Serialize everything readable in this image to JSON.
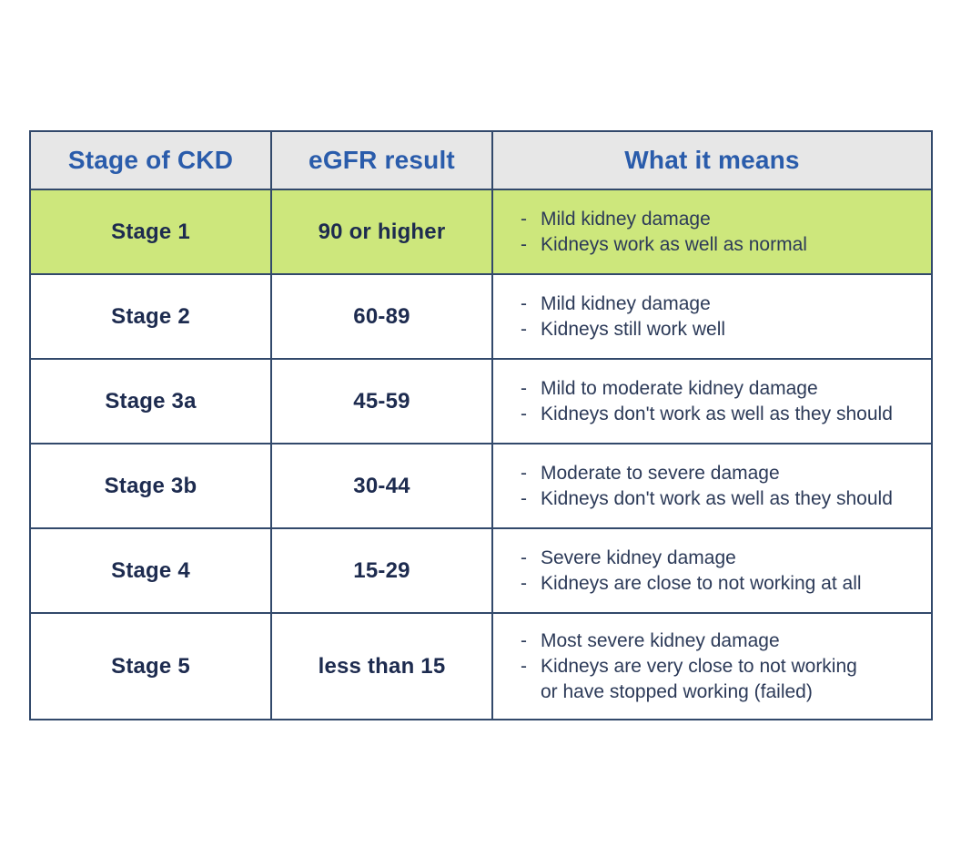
{
  "page": {
    "background": "#ffffff"
  },
  "table": {
    "title_semantic": "Stages of chronic kidney disease by eGFR result",
    "bullet_char": "-",
    "columns": [
      {
        "label": "Stage of CKD"
      },
      {
        "label": "eGFR result"
      },
      {
        "label": "What it means"
      }
    ],
    "rows": [
      {
        "stage": "Stage 1",
        "egfr": "90 or higher",
        "highlighted": true,
        "meaning": [
          "Mild kidney damage",
          "Kidneys work as well as normal"
        ]
      },
      {
        "stage": "Stage 2",
        "egfr": "60-89",
        "highlighted": false,
        "meaning": [
          "Mild kidney damage",
          "Kidneys still work well"
        ]
      },
      {
        "stage": "Stage 3a",
        "egfr": "45-59",
        "highlighted": false,
        "meaning": [
          "Mild to moderate kidney damage",
          "Kidneys don't work as well as they should"
        ]
      },
      {
        "stage": "Stage 3b",
        "egfr": "30-44",
        "highlighted": false,
        "meaning": [
          "Moderate to severe damage",
          "Kidneys don't work as well as they should"
        ]
      },
      {
        "stage": "Stage 4",
        "egfr": "15-29",
        "highlighted": false,
        "meaning": [
          "Severe kidney damage",
          "Kidneys are close to not working at all"
        ]
      },
      {
        "stage": "Stage 5",
        "egfr": "less than 15",
        "highlighted": false,
        "meaning": [
          "Most severe kidney damage",
          "Kidneys are very close to not working",
          "or have stopped working (failed)"
        ]
      }
    ],
    "colors": {
      "header_bg": "#e7e7e7",
      "header_text": "#2a5cab",
      "highlight_row_bg": "#cde77c",
      "body_text": "#1d2b4f",
      "meaning_text": "#2c3a58",
      "border": "#32496b"
    }
  }
}
